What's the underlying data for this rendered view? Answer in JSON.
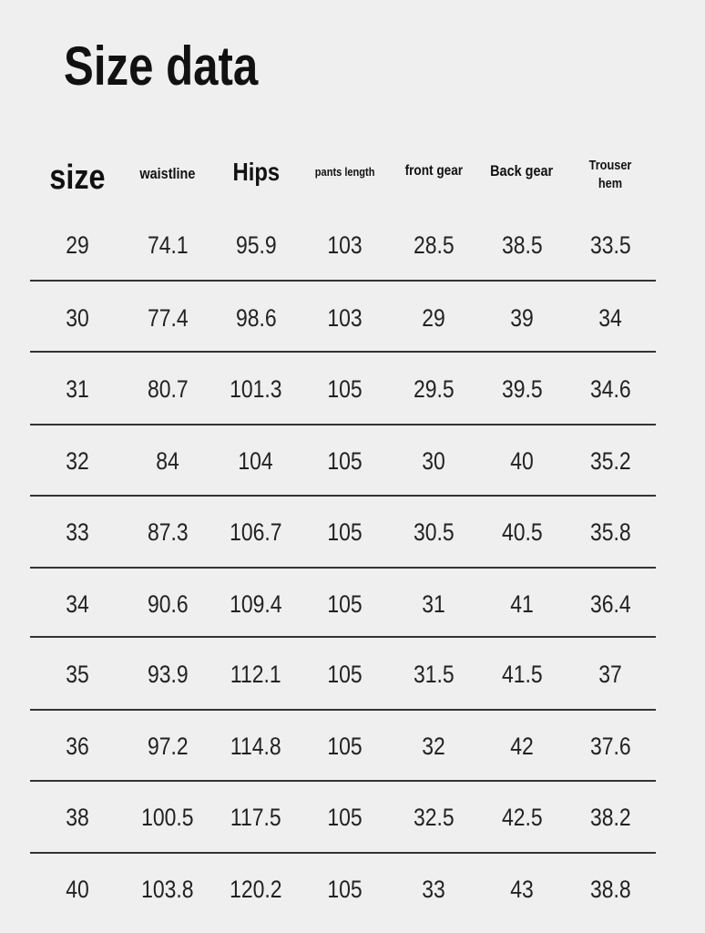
{
  "title": "Size data",
  "table": {
    "headers": [
      "size",
      "waistline",
      "Hips",
      "pants length",
      "front gear",
      "Back gear",
      "Trouser hem"
    ],
    "rows": [
      [
        "29",
        "74.1",
        "95.9",
        "103",
        "28.5",
        "38.5",
        "33.5"
      ],
      [
        "30",
        "77.4",
        "98.6",
        "103",
        "29",
        "39",
        "34"
      ],
      [
        "31",
        "80.7",
        "101.3",
        "105",
        "29.5",
        "39.5",
        "34.6"
      ],
      [
        "32",
        "84",
        "104",
        "105",
        "30",
        "40",
        "35.2"
      ],
      [
        "33",
        "87.3",
        "106.7",
        "105",
        "30.5",
        "40.5",
        "35.8"
      ],
      [
        "34",
        "90.6",
        "109.4",
        "105",
        "31",
        "41",
        "36.4"
      ],
      [
        "35",
        "93.9",
        "112.1",
        "105",
        "31.5",
        "41.5",
        "37"
      ],
      [
        "36",
        "97.2",
        "114.8",
        "105",
        "32",
        "42",
        "37.6"
      ],
      [
        "38",
        "100.5",
        "117.5",
        "105",
        "32.5",
        "42.5",
        "38.2"
      ],
      [
        "40",
        "103.8",
        "120.2",
        "105",
        "33",
        "43",
        "38.8"
      ]
    ]
  }
}
